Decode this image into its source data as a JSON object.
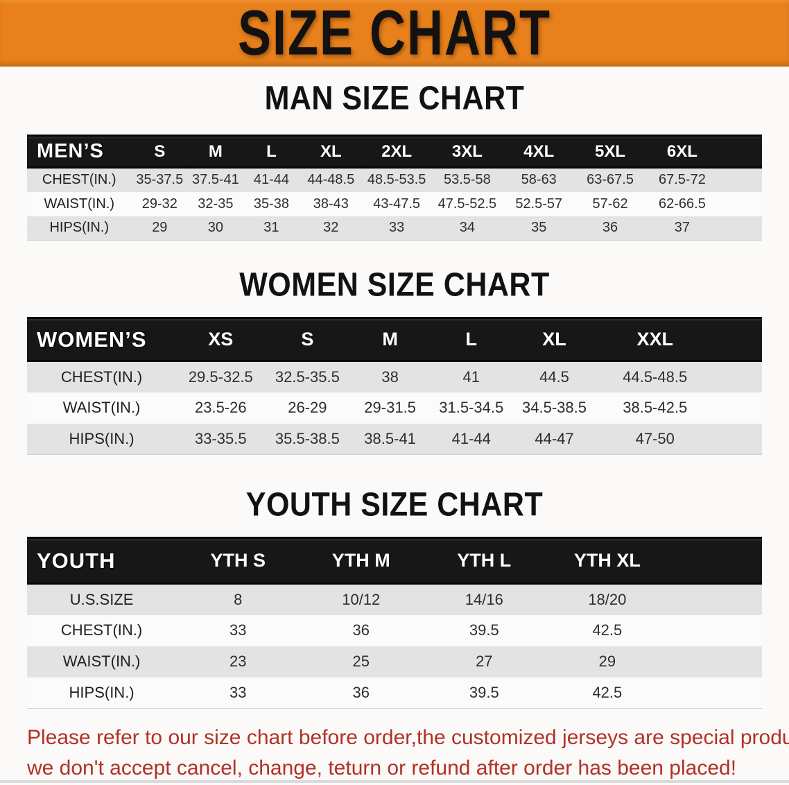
{
  "banner": {
    "title": "SIZE CHART",
    "bg_color": "#E8811C"
  },
  "sections": [
    {
      "heading": "MAN SIZE CHART",
      "corner_label": "MEN’S",
      "columns": [
        "S",
        "M",
        "L",
        "XL",
        "2XL",
        "3XL",
        "4XL",
        "5XL",
        "6XL"
      ],
      "rows": [
        {
          "label": "CHEST(IN.)",
          "values": [
            "35-37.5",
            "37.5-41",
            "41-44",
            "44-48.5",
            "48.5-53.5",
            "53.5-58",
            "58-63",
            "63-67.5",
            "67.5-72"
          ]
        },
        {
          "label": "WAIST(IN.)",
          "values": [
            "29-32",
            "32-35",
            "35-38",
            "38-43",
            "43-47.5",
            "47.5-52.5",
            "52.5-57",
            "57-62",
            "62-66.5"
          ]
        },
        {
          "label": "HIPS(IN.)",
          "values": [
            "29",
            "30",
            "31",
            "32",
            "33",
            "34",
            "35",
            "36",
            "37"
          ]
        }
      ]
    },
    {
      "heading": "WOMEN SIZE CHART",
      "corner_label": "WOMEN’S",
      "columns": [
        "XS",
        "S",
        "M",
        "L",
        "XL",
        "XXL"
      ],
      "rows": [
        {
          "label": "CHEST(IN.)",
          "values": [
            "29.5-32.5",
            "32.5-35.5",
            "38",
            "41",
            "44.5",
            "44.5-48.5"
          ]
        },
        {
          "label": "WAIST(IN.)",
          "values": [
            "23.5-26",
            "26-29",
            "29-31.5",
            "31.5-34.5",
            "34.5-38.5",
            "38.5-42.5"
          ]
        },
        {
          "label": "HIPS(IN.)",
          "values": [
            "33-35.5",
            "35.5-38.5",
            "38.5-41",
            "41-44",
            "44-47",
            "47-50"
          ]
        }
      ]
    },
    {
      "heading": "YOUTH SIZE CHART",
      "corner_label": "YOUTH",
      "columns": [
        "YTH S",
        "YTH M",
        "YTH L",
        "YTH XL"
      ],
      "rows": [
        {
          "label": "U.S.SIZE",
          "values": [
            "8",
            "10/12",
            "14/16",
            "18/20"
          ]
        },
        {
          "label": "CHEST(IN.)",
          "values": [
            "33",
            "36",
            "39.5",
            "42.5"
          ]
        },
        {
          "label": "WAIST(IN.)",
          "values": [
            "23",
            "25",
            "27",
            "29"
          ]
        },
        {
          "label": "HIPS(IN.)",
          "values": [
            "33",
            "36",
            "39.5",
            "42.5"
          ]
        }
      ]
    }
  ],
  "footer": {
    "line1": "Please refer to our size chart before order,the customized jerseys are special products,",
    "line2": "we don't accept cancel, change, teturn or refund after order has been placed!",
    "text_color": "#B13127"
  },
  "colors": {
    "banner_orange": "#E8811C",
    "header_black": "#171717",
    "row_gray": "#E3E3E3",
    "row_white": "#FBFBFB"
  }
}
